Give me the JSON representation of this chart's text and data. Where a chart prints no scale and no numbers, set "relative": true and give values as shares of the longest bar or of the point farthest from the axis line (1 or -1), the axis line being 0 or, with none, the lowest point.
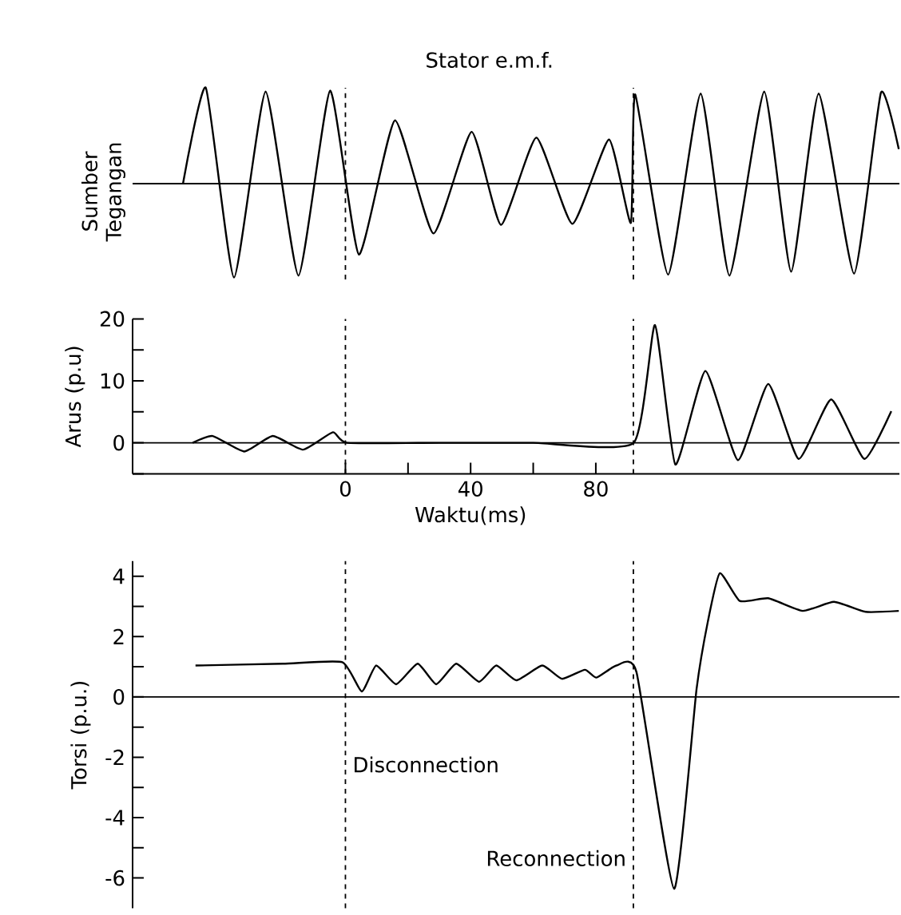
{
  "chart_data": [
    {
      "type": "line",
      "relative": true,
      "ylabel": "Sumber Tegangan",
      "annotations": [
        "Stator e.m.f."
      ],
      "xlim": [
        -68,
        177
      ],
      "tick_labels": false,
      "x": [
        -51.9,
        -44.6,
        -35.6,
        -25.5,
        -15.0,
        -4.9,
        4.3,
        15.8,
        28.1,
        40.3,
        49.7,
        61.0,
        72.5,
        84.2,
        91.2,
        92.6,
        103.1,
        113.5,
        122.7,
        133.8,
        142.4,
        151.2,
        162.5,
        171.1,
        176.8
      ],
      "values": [
        0,
        1.0,
        -0.98,
        0.96,
        -0.96,
        0.97,
        -0.74,
        0.66,
        -0.52,
        0.54,
        -0.43,
        0.48,
        -0.42,
        0.46,
        -0.41,
        0.93,
        -0.95,
        0.94,
        -0.96,
        0.96,
        -0.92,
        0.94,
        -0.94,
        0.95,
        0.36
      ],
      "ref_lines": [
        {
          "axis": "x",
          "value": 0,
          "line_style": "dashed"
        },
        {
          "axis": "x",
          "value": 92,
          "line_style": "dashed"
        }
      ]
    },
    {
      "type": "line",
      "ylabel": "Arus (p.u)",
      "xlabel": "Waktu(ms)",
      "xlim": [
        -68,
        177
      ],
      "ylim": [
        -5,
        20
      ],
      "xticks": [
        0,
        {
          "value": 20,
          "label": null
        },
        40,
        {
          "value": 60,
          "label": null
        },
        80
      ],
      "yticks": [
        {
          "value": -5,
          "label": null
        },
        0,
        {
          "value": 5,
          "label": null
        },
        10,
        {
          "value": 15,
          "label": null
        },
        20
      ],
      "x": [
        -48.8,
        -42.4,
        -32.3,
        -23.2,
        -13.5,
        -4.0,
        0.6,
        30,
        60,
        92.1,
        98.9,
        105.4,
        115.0,
        125.4,
        135.1,
        144.8,
        155.2,
        165.8,
        174.4
      ],
      "values": [
        0,
        1.1,
        -1.4,
        1.1,
        -1.1,
        1.7,
        0,
        0,
        0,
        0,
        19,
        -3.5,
        11.6,
        -2.8,
        9.5,
        -2.6,
        7.0,
        -2.6,
        5.1
      ],
      "ref_lines": [
        {
          "axis": "y",
          "value": 0,
          "line_style": "solid"
        },
        {
          "axis": "x",
          "value": 0,
          "line_style": "dashed"
        },
        {
          "axis": "x",
          "value": 92,
          "line_style": "dashed"
        }
      ]
    },
    {
      "type": "line",
      "ylabel": "Torsi (p.u.)",
      "xlim": [
        -68,
        177
      ],
      "ylim": [
        -7,
        4.5
      ],
      "tick_labels": "y",
      "yticks": [
        -6,
        {
          "value": -5,
          "label": null
        },
        -4,
        {
          "value": -3,
          "label": null
        },
        -2,
        {
          "value": -1,
          "label": null
        },
        0,
        {
          "value": 1,
          "label": null
        },
        2,
        {
          "value": 3,
          "label": null
        },
        4
      ],
      "x": [
        -47.9,
        -20,
        -1,
        5.2,
        9.8,
        16.2,
        23.1,
        29.0,
        35.4,
        42.7,
        48.2,
        54.6,
        62.9,
        69.2,
        76.5,
        80.2,
        86.6,
        93.0,
        105.0,
        112.2,
        115.8,
        119.6,
        126.0,
        135.1,
        146.1,
        156.1,
        166.2,
        176.8
      ],
      "values": [
        1.04,
        1.1,
        1.15,
        0.18,
        1.04,
        0.42,
        1.1,
        0.42,
        1.1,
        0.5,
        1.04,
        0.55,
        1.04,
        0.6,
        0.9,
        0.64,
        1.04,
        0.82,
        -6.36,
        0.27,
        2.5,
        4.1,
        3.18,
        3.27,
        2.85,
        3.15,
        2.82,
        2.85
      ],
      "ref_lines": [
        {
          "axis": "y",
          "value": 0,
          "line_style": "solid"
        },
        {
          "axis": "x",
          "value": 0,
          "line_style": "dashed",
          "label": "Disconnection"
        },
        {
          "axis": "x",
          "value": 92,
          "line_style": "dashed",
          "label": "Reconnection"
        }
      ]
    }
  ]
}
